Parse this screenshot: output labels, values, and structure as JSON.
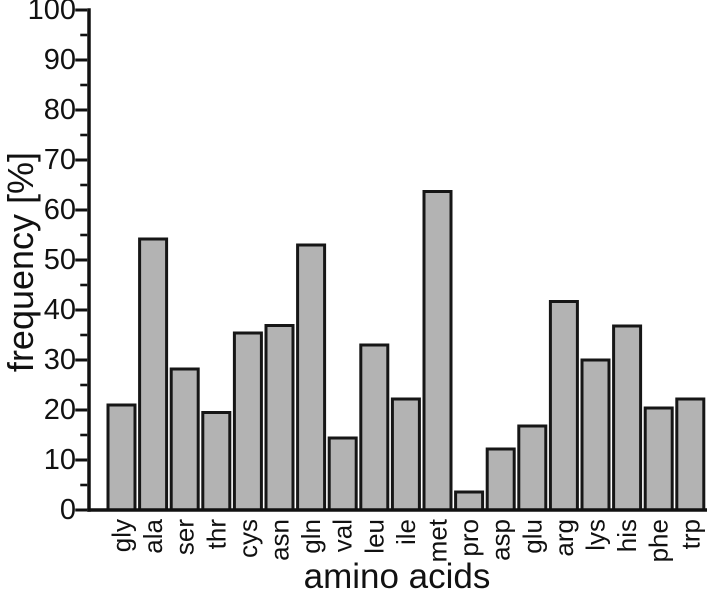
{
  "figure": {
    "background": "#ffffff",
    "text_color": "#111111"
  },
  "chart_data": {
    "type": "bar",
    "title": "",
    "xlabel": "amino acids",
    "ylabel": "frequency [%]",
    "categories": [
      "gly",
      "ala",
      "ser",
      "thr",
      "cys",
      "asn",
      "gln",
      "val",
      "leu",
      "ile",
      "met",
      "pro",
      "asp",
      "glu",
      "arg",
      "lys",
      "his",
      "phe",
      "trp"
    ],
    "values": [
      21.0,
      54.2,
      28.2,
      19.5,
      35.4,
      36.9,
      53.0,
      14.4,
      33.0,
      22.2,
      63.7,
      3.6,
      12.2,
      16.8,
      41.7,
      30.0,
      36.8,
      20.4,
      22.2
    ],
    "ylim": [
      0,
      100
    ],
    "yticks": [
      0,
      10,
      20,
      30,
      40,
      50,
      60,
      70,
      80,
      90,
      100
    ],
    "ytick_major_step": 10,
    "ytick_minor_step": 5,
    "grid": false,
    "legend": null,
    "bar_fill": "#b3b3b3",
    "bar_stroke": "#161616",
    "axis_color": "#111111"
  }
}
